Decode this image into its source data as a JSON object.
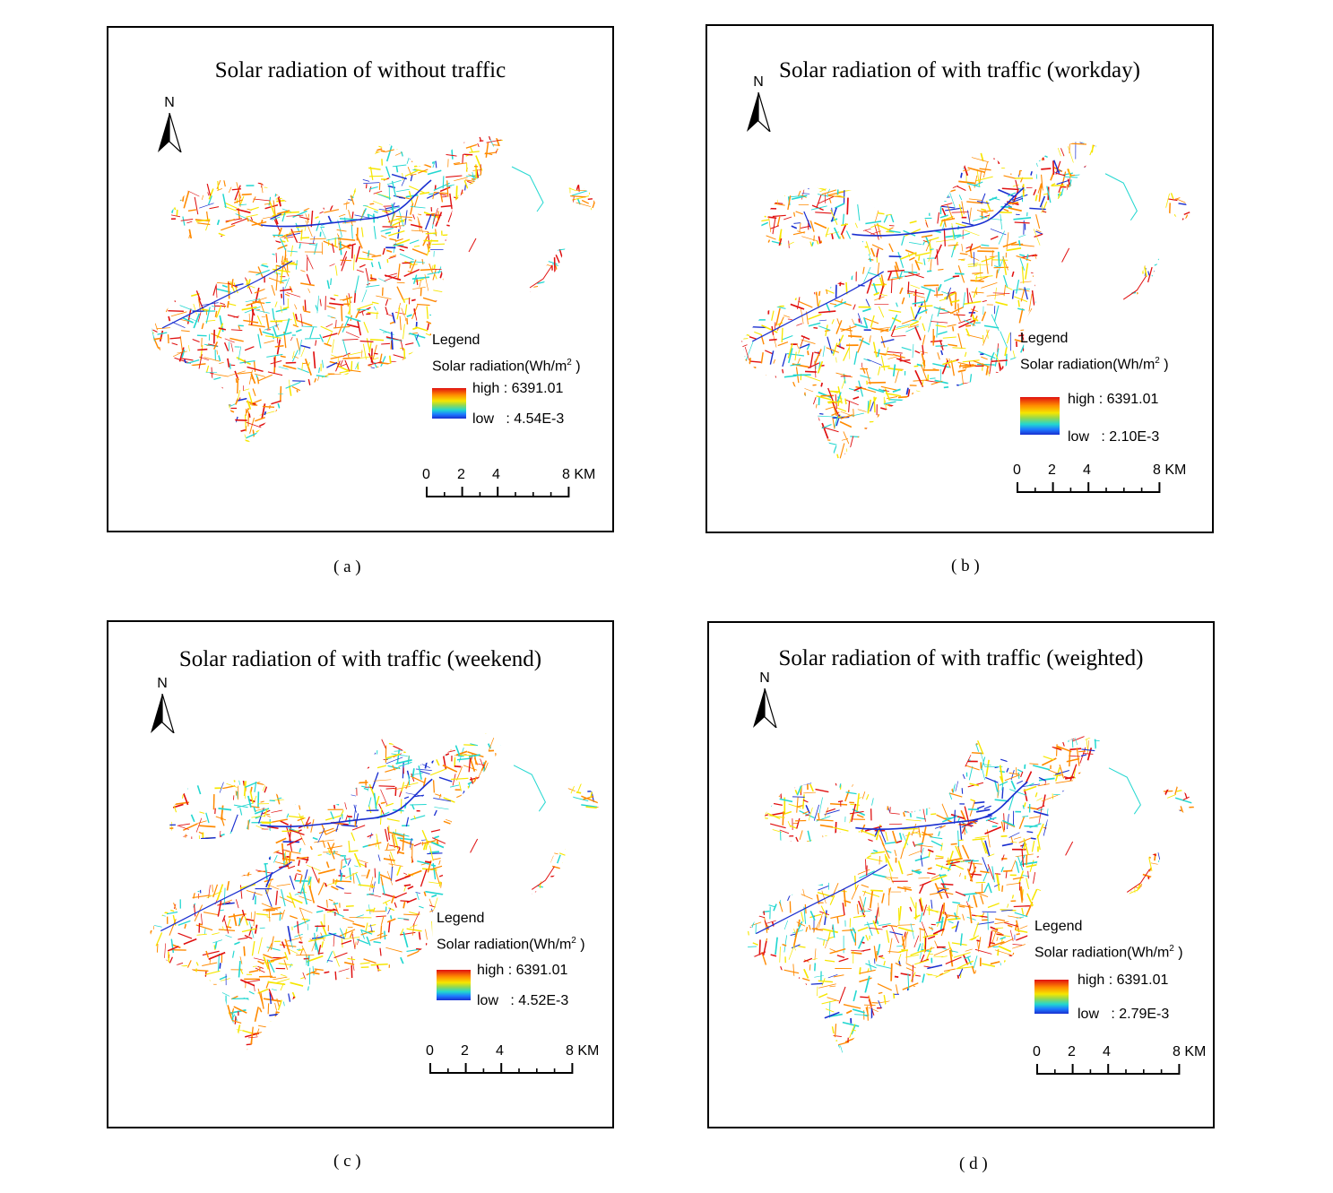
{
  "figure": {
    "panels": [
      {
        "id": "a",
        "title": "Solar radiation of without traffic",
        "legend_title": "Legend",
        "legend_label": "Solar radiation(Wh/m",
        "legend_unit_sup": "2",
        "legend_close": " )",
        "high_text": "high : 6391.01",
        "low_text": "low   : 4.54E-3",
        "caption": "( a )"
      },
      {
        "id": "b",
        "title": "Solar radiation of with traffic (workday)",
        "legend_title": "Legend",
        "legend_label": "Solar radiation(Wh/m",
        "legend_unit_sup": "2",
        "legend_close": " )",
        "high_text": "high : 6391.01",
        "low_text": "low   : 2.10E-3",
        "caption": "( b )"
      },
      {
        "id": "c",
        "title": "Solar radiation of with traffic (weekend)",
        "legend_title": "Legend",
        "legend_label": "Solar radiation(Wh/m",
        "legend_unit_sup": "2",
        "legend_close": " )",
        "high_text": "high : 6391.01",
        "low_text": "low   : 4.52E-3",
        "caption": "( c )"
      },
      {
        "id": "d",
        "title": "Solar radiation of with traffic (weighted)",
        "legend_title": "Legend",
        "legend_label": "Solar radiation(Wh/m",
        "legend_unit_sup": "2",
        "legend_close": " )",
        "high_text": "high : 6391.01",
        "low_text": "low   : 2.79E-3",
        "caption": "( d )"
      }
    ],
    "north_label": "N",
    "scale_labels": [
      "0",
      "2",
      "4",
      "8 KM"
    ],
    "colors": {
      "high": "#e01010",
      "mid_high": "#ff8a00",
      "mid": "#f6e600",
      "mid_low": "#22d7d0",
      "low": "#1a2fd0",
      "frame": "#000000"
    }
  }
}
